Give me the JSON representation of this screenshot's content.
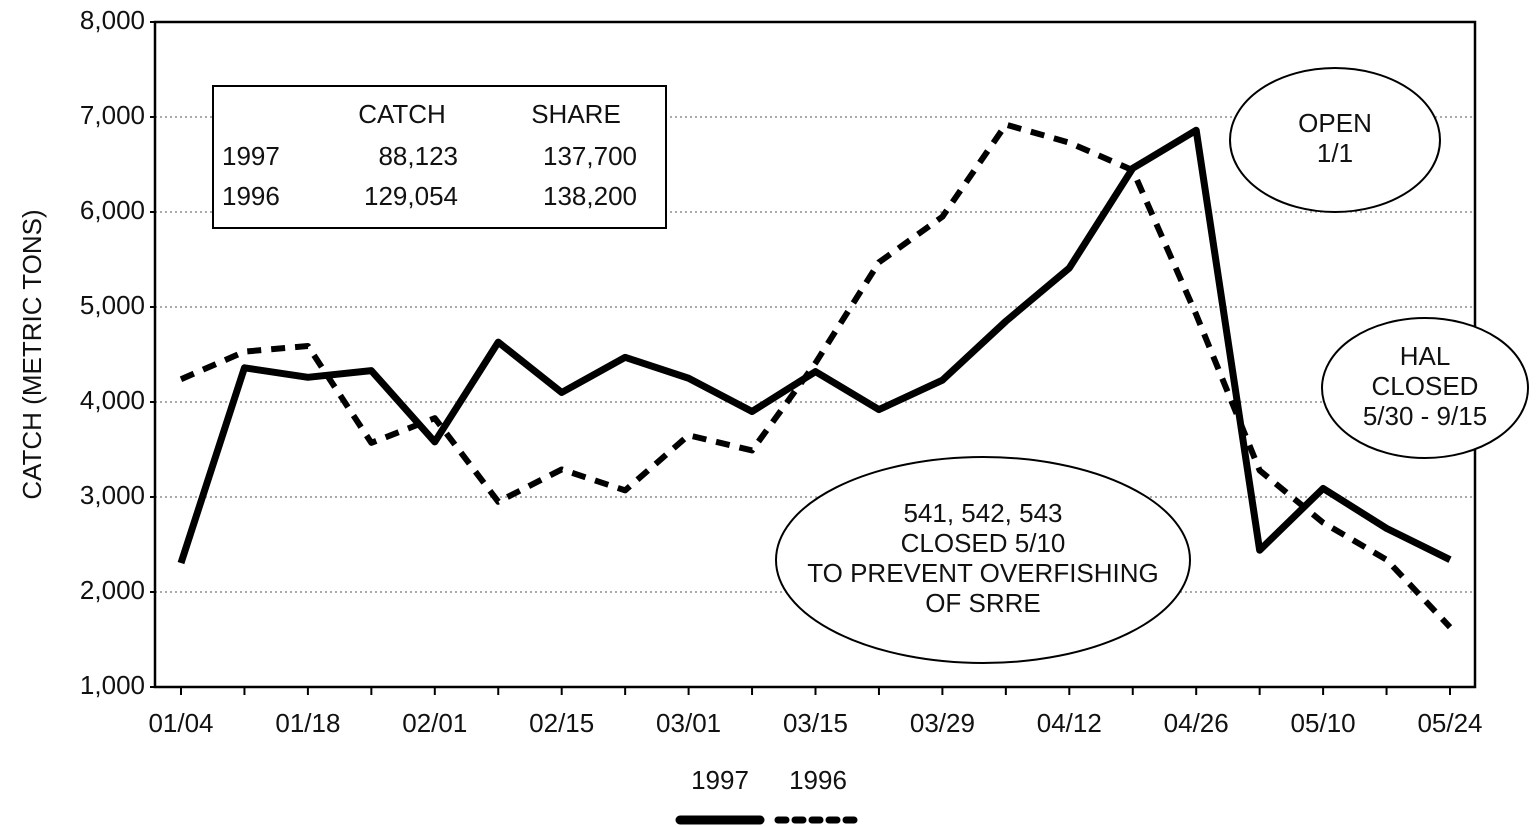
{
  "chart_data": {
    "type": "line",
    "y_label": "CATCH (METRIC TONS)",
    "categories": [
      "01/04",
      null,
      "01/18",
      null,
      "02/01",
      null,
      "02/15",
      null,
      "03/01",
      null,
      "03/15",
      null,
      "03/29",
      null,
      "04/12",
      null,
      "04/26",
      null,
      "05/10",
      null,
      "05/24"
    ],
    "series": [
      {
        "name": "1997",
        "color": "#000000",
        "dash": false,
        "values": [
          2305,
          4360,
          4260,
          4330,
          3580,
          4630,
          4100,
          4470,
          4250,
          3900,
          4320,
          3920,
          4230,
          4850,
          5410,
          6460,
          6860,
          2440,
          3090,
          2670,
          2340
        ]
      },
      {
        "name": "1996",
        "color": "#000000",
        "dash": true,
        "values": [
          4240,
          4530,
          4590,
          3570,
          3830,
          2950,
          3290,
          3070,
          3650,
          3490,
          4410,
          5470,
          5950,
          6920,
          6730,
          6440,
          4920,
          3280,
          2730,
          2340,
          1630
        ]
      }
    ],
    "ylim": [
      1000,
      8000
    ],
    "yticks": [
      {
        "value": 1000,
        "label": "1,000"
      },
      {
        "value": 2000,
        "label": "2,000"
      },
      {
        "value": 3000,
        "label": "3,000"
      },
      {
        "value": 4000,
        "label": "4,000"
      },
      {
        "value": 5000,
        "label": "5,000"
      },
      {
        "value": 6000,
        "label": "6,000"
      },
      {
        "value": 7000,
        "label": "7,000"
      },
      {
        "value": 8000,
        "label": "8,000"
      }
    ],
    "grid": true,
    "inset_table": {
      "headers": [
        "CATCH",
        "SHARE"
      ],
      "rows": [
        [
          "1997",
          "88,123",
          "137,700"
        ],
        [
          "1996",
          "129,054",
          "138,200"
        ]
      ]
    },
    "annotations": [
      {
        "lines": [
          "OPEN",
          "1/1"
        ]
      },
      {
        "lines": [
          "HAL",
          "CLOSED",
          "5/30 - 9/15"
        ]
      },
      {
        "lines": [
          "541, 542, 543",
          "CLOSED 5/10",
          "TO PREVENT OVERFISHING",
          "OF SRRE"
        ]
      }
    ]
  }
}
